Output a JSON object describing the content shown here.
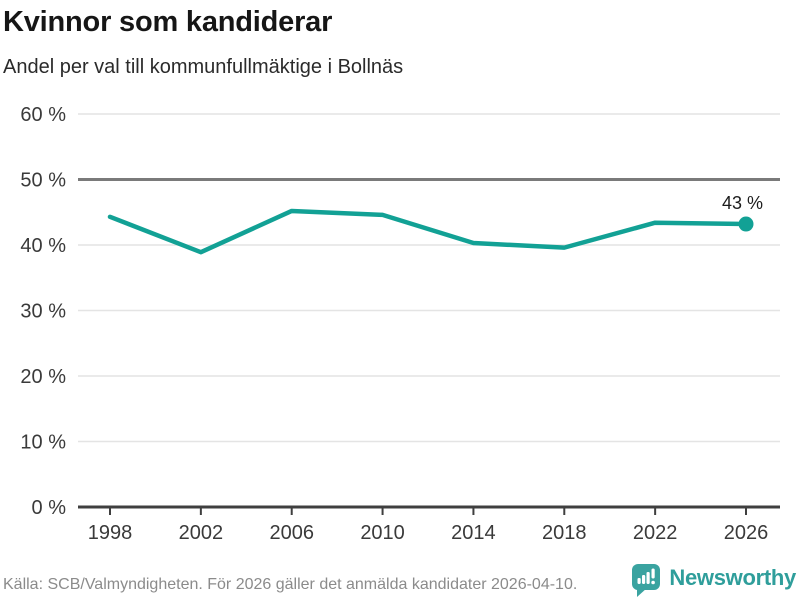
{
  "header": {
    "title": "Kvinnor som kandiderar",
    "subtitle": "Andel per val till kommunfullmäktige i Bollnäs"
  },
  "chart_data": {
    "type": "line",
    "title": "Kvinnor som kandiderar",
    "subtitle": "Andel per val till kommunfullmäktige i Bollnäs",
    "categories": [
      "1998",
      "2002",
      "2006",
      "2010",
      "2014",
      "2018",
      "2022",
      "2026"
    ],
    "values": [
      44.3,
      38.9,
      45.2,
      44.6,
      40.3,
      39.6,
      43.4,
      43.2
    ],
    "xlabel": "",
    "ylabel": "",
    "ylim": [
      0,
      60
    ],
    "ytick_step": 10,
    "ytick_suffix": " %",
    "grid": "horizontal",
    "reference_line": 50,
    "last_point_label": "43 %",
    "legend": "none",
    "line_color": "#12a195",
    "grid_color": "#e4e4e4",
    "reference_line_color": "#7a7a7a",
    "axis_color": "#3f3f3f",
    "tick_label_color": "#3a3a3a",
    "annotation_color": "#1c1c1c"
  },
  "footer": {
    "source": "Källa: SCB/Valmyndigheten. För 2026 gäller det anmälda kandidater 2026-04-10.",
    "brand": "Newsworthy",
    "brand_color": "#2f9e9b",
    "logo_color": "#3aa3a0"
  }
}
